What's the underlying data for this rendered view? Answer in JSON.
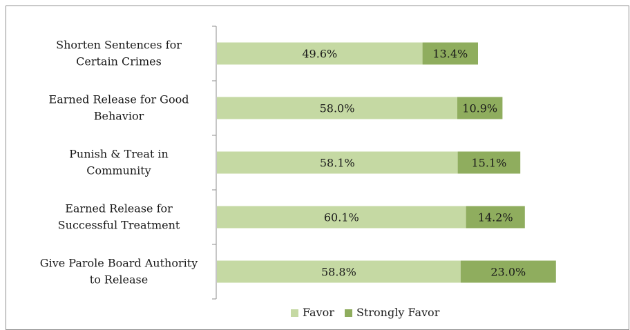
{
  "chart_data": {
    "type": "bar",
    "orientation": "horizontal",
    "stacked": true,
    "categories": [
      [
        "Shorten Sentences for",
        "Certain Crimes"
      ],
      [
        "Earned Release for Good",
        "Behavior"
      ],
      [
        "Punish & Treat in",
        "Community"
      ],
      [
        "Earned Release for",
        "Successful Treatment"
      ],
      [
        "Give Parole Board Authority",
        "to Release"
      ]
    ],
    "series": [
      {
        "name": "Favor",
        "color": "#c5d9a3",
        "values": [
          49.6,
          58.0,
          58.1,
          60.1,
          58.8
        ],
        "labels": [
          "49.6%",
          "58.0%",
          "58.1%",
          "60.1%",
          "58.8%"
        ]
      },
      {
        "name": "Strongly Favor",
        "color": "#8fad5e",
        "values": [
          13.4,
          10.9,
          15.1,
          14.2,
          23.0
        ],
        "labels": [
          "13.4%",
          "10.9%",
          "15.1%",
          "14.2%",
          "23.0%"
        ]
      }
    ],
    "xlim": [
      0,
      100
    ],
    "grid": false,
    "legend": "bottom",
    "axis_color": "#8c8c8c"
  }
}
